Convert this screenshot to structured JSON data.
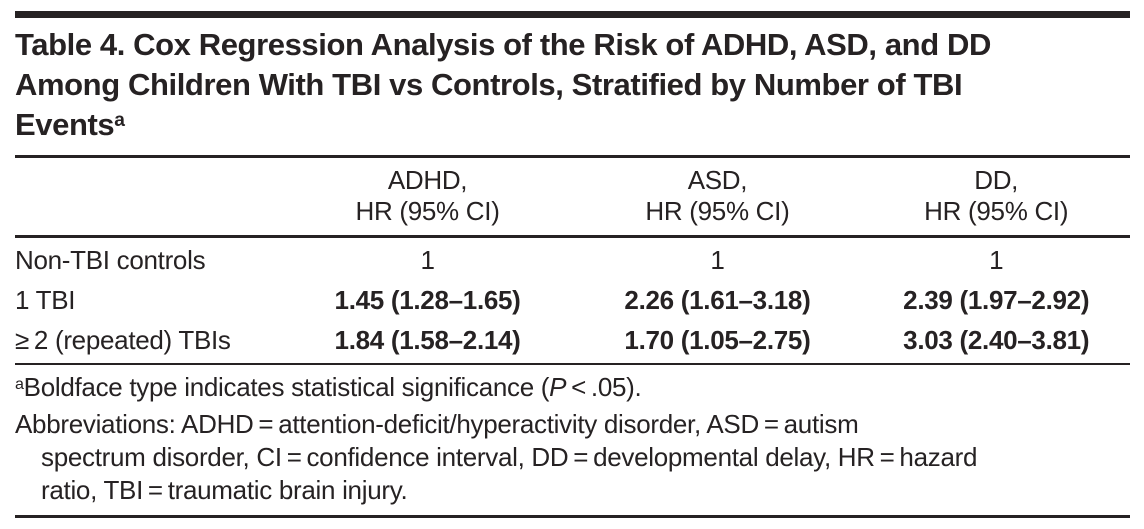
{
  "title": {
    "line1": "Table 4. Cox Regression Analysis of the Risk of ADHD, ASD, and DD",
    "line2": "Among Children With TBI vs Controls, Stratified by Number of TBI",
    "line3_text": "Events",
    "line3_sup": "a"
  },
  "table": {
    "columns": [
      {
        "line1": "ADHD,",
        "line2": "HR (95% CI)"
      },
      {
        "line1": "ASD,",
        "line2": "HR (95% CI)"
      },
      {
        "line1": "DD,",
        "line2": "HR (95% CI)"
      }
    ],
    "rows": [
      {
        "label": "Non-TBI controls",
        "cells": [
          "1",
          "1",
          "1"
        ],
        "significant": false
      },
      {
        "label": "1 TBI",
        "cells": [
          "1.45 (1.28–1.65)",
          "2.26 (1.61–3.18)",
          "2.39 (1.97–2.92)"
        ],
        "significant": true
      },
      {
        "label": "≥ 2 (repeated) TBIs",
        "cells": [
          "1.84 (1.58–2.14)",
          "1.70 (1.05–2.75)",
          "3.03 (2.40–3.81)"
        ],
        "significant": true
      }
    ]
  },
  "footnotes": {
    "a_marker": "a",
    "a_pre": "Boldface type indicates statistical significance (",
    "a_p": "P",
    "a_post": " < .05).",
    "abbrev_line1": "Abbreviations: ADHD = attention-deficit/hyperactivity disorder, ASD = autism",
    "abbrev_line2": "spectrum disorder, CI = confidence interval, DD = developmental delay, HR = hazard",
    "abbrev_line3": "ratio, TBI = traumatic brain injury."
  },
  "colors": {
    "text": "#262223",
    "accent_bar": "#262223",
    "rules": "#262223",
    "background": "#ffffff"
  }
}
